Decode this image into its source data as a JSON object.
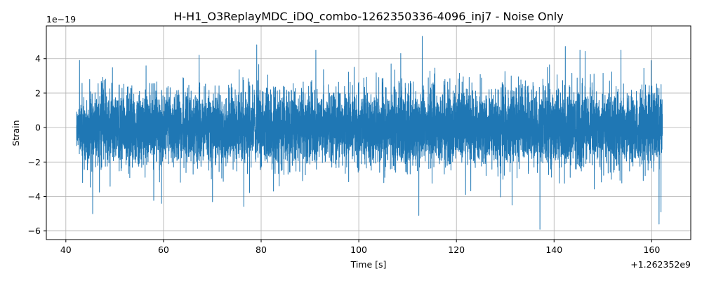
{
  "chart_data": {
    "type": "line",
    "title": "H-H1_O3ReplayMDC_iDQ_combo-1262350336-4096_inj7 - Noise Only",
    "xlabel": "Time [s]",
    "ylabel": "Strain",
    "x_offset_label": "+1.262352e9",
    "y_scale_label": "1e−19",
    "xlim": [
      36,
      168
    ],
    "ylim": [
      -6.5,
      5.9
    ],
    "x_ticks": [
      40,
      60,
      80,
      100,
      120,
      140,
      160
    ],
    "x_tick_labels": [
      "40",
      "60",
      "80",
      "100",
      "120",
      "140",
      "160"
    ],
    "y_ticks": [
      -6,
      -4,
      -2,
      0,
      2,
      4
    ],
    "y_tick_labels": [
      "−6",
      "−4",
      "−2",
      "0",
      "2",
      "4"
    ],
    "grid": true,
    "line_color": "#1f77b4",
    "series": [
      {
        "x_range": [
          42.2,
          162.2
        ],
        "typical_range": [
          -2.5,
          2.5
        ],
        "peaks": [
          {
            "x": 42.8,
            "y": 3.9
          },
          {
            "x": 45.5,
            "y": -5.0
          },
          {
            "x": 59.6,
            "y": -4.4
          },
          {
            "x": 67.3,
            "y": 4.2
          },
          {
            "x": 79.1,
            "y": 4.8
          },
          {
            "x": 91.2,
            "y": 4.5
          },
          {
            "x": 113.0,
            "y": 5.3
          },
          {
            "x": 112.3,
            "y": -5.1
          },
          {
            "x": 108.6,
            "y": 4.3
          },
          {
            "x": 131.4,
            "y": -4.5
          },
          {
            "x": 137.1,
            "y": -5.9
          },
          {
            "x": 161.5,
            "y": -5.6
          },
          {
            "x": 161.9,
            "y": -4.9
          },
          {
            "x": 153.7,
            "y": 4.5
          },
          {
            "x": 145.3,
            "y": 4.5
          },
          {
            "x": 142.3,
            "y": 4.7
          }
        ]
      }
    ]
  }
}
